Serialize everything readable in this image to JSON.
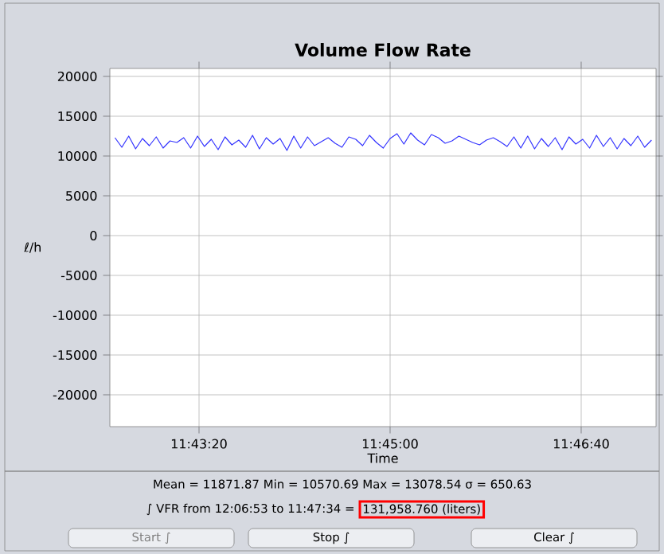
{
  "chart_data": {
    "type": "line",
    "title": "Volume Flow Rate",
    "xlabel": "Time",
    "ylabel": "ℓ/h",
    "xlim": [
      11.70926,
      11.78866
    ],
    "ylim": [
      -24000,
      21000
    ],
    "xticks": [
      {
        "value": 11.722222,
        "label": "11:43:20"
      },
      {
        "value": 11.75,
        "label": "11:45:00"
      },
      {
        "value": 11.777778,
        "label": "11:46:40"
      }
    ],
    "yticks": [
      -20000,
      -15000,
      -10000,
      -5000,
      0,
      5000,
      10000,
      15000,
      20000
    ],
    "grid": true,
    "marker": "none",
    "line_style": "solid",
    "series": [
      {
        "color": "#3333ff",
        "x": [
          11.71,
          11.711,
          11.712,
          11.713,
          11.714,
          11.715,
          11.716,
          11.717,
          11.718,
          11.719,
          11.72,
          11.721,
          11.722,
          11.723,
          11.724,
          11.725,
          11.726,
          11.727,
          11.728,
          11.729,
          11.73,
          11.731,
          11.732,
          11.733,
          11.734,
          11.735,
          11.736,
          11.737,
          11.738,
          11.739,
          11.74,
          11.741,
          11.742,
          11.743,
          11.744,
          11.745,
          11.746,
          11.747,
          11.748,
          11.749,
          11.75,
          11.751,
          11.752,
          11.753,
          11.754,
          11.755,
          11.756,
          11.757,
          11.758,
          11.759,
          11.76,
          11.761,
          11.762,
          11.763,
          11.764,
          11.765,
          11.766,
          11.767,
          11.768,
          11.769,
          11.77,
          11.771,
          11.772,
          11.773,
          11.774,
          11.775,
          11.776,
          11.777,
          11.778,
          11.779,
          11.78,
          11.781,
          11.782,
          11.783,
          11.784,
          11.785,
          11.786,
          11.787,
          11.788
        ],
        "values": [
          12300,
          11100,
          12500,
          10900,
          12200,
          11300,
          12400,
          11000,
          11900,
          11700,
          12300,
          11000,
          12500,
          11200,
          12100,
          10800,
          12400,
          11400,
          12000,
          11100,
          12600,
          10900,
          12300,
          11500,
          12200,
          10700,
          12500,
          11000,
          12400,
          11300,
          11800,
          12300,
          11600,
          11100,
          12400,
          12100,
          11300,
          12600,
          11700,
          11000,
          12200,
          12800,
          11500,
          12900,
          12000,
          11400,
          12700,
          12300,
          11600,
          11900,
          12500,
          12100,
          11700,
          11400,
          12000,
          12300,
          11800,
          11200,
          12400,
          11000,
          12500,
          10900,
          12200,
          11200,
          12300,
          10800,
          12400,
          11500,
          12100,
          11000,
          12600,
          11200,
          12300,
          10900,
          12200,
          11300,
          12500,
          11100,
          12000
        ]
      }
    ],
    "annotations": [
      "Mean = 11871.87 Min = 10570.69 Max = 13078.54 σ = 650.63",
      "∫ VFR from 12:06:53 to 11:47:34 =",
      "131,958.760 (liters)",
      "Start ∫",
      "Stop ∫",
      "Clear ∫"
    ]
  }
}
